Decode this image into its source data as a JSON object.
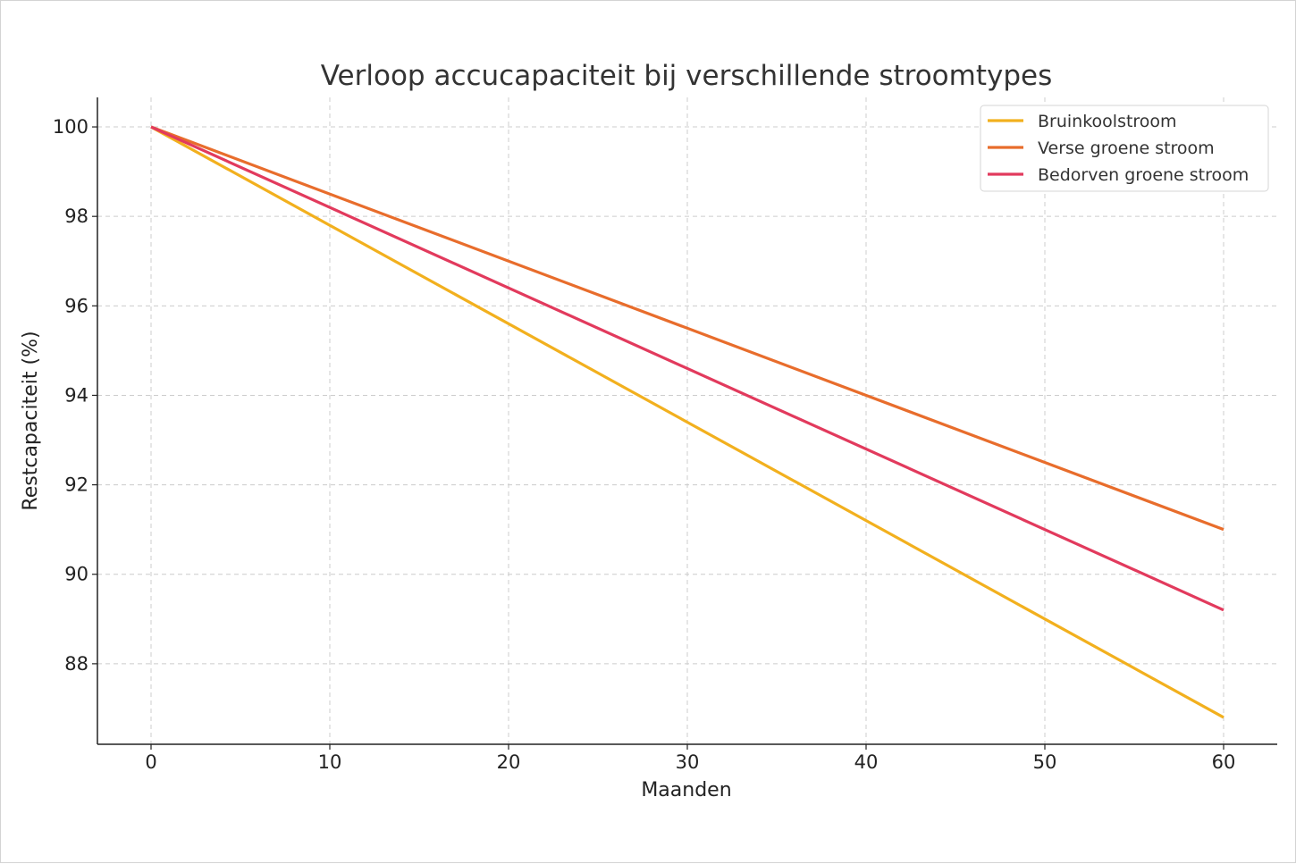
{
  "chart_data": {
    "type": "line",
    "title": "Verloop accucapaciteit bij verschillende stroomtypes",
    "xlabel": "Maanden",
    "ylabel": "Restcapaciteit (%)",
    "x": [
      0,
      60
    ],
    "xlim": [
      -3,
      63
    ],
    "ylim": [
      86.2,
      100.66
    ],
    "xticks": [
      0,
      10,
      20,
      30,
      40,
      50,
      60
    ],
    "yticks": [
      88,
      90,
      92,
      94,
      96,
      98,
      100
    ],
    "grid": true,
    "legend_position": "top-right",
    "series": [
      {
        "name": "Bruinkoolstroom",
        "color": "#f2b01e",
        "values": [
          100,
          86.8
        ]
      },
      {
        "name": "Verse groene stroom",
        "color": "#e86d2c",
        "values": [
          100,
          91.0
        ]
      },
      {
        "name": "Bedorven groene stroom",
        "color": "#e23a5d",
        "values": [
          100,
          89.2
        ]
      }
    ]
  }
}
